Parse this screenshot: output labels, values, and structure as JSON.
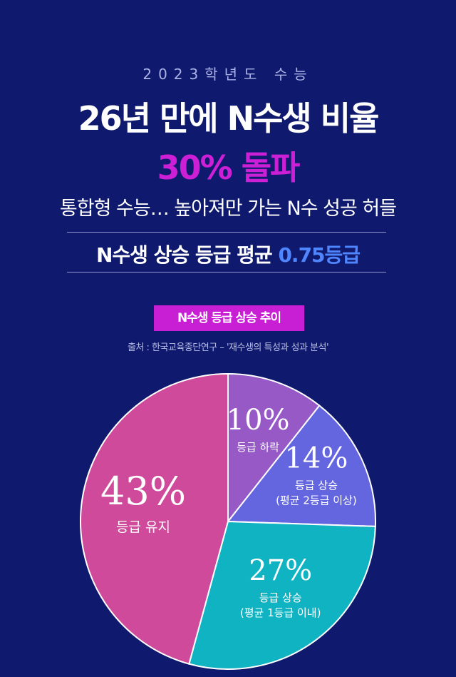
{
  "header": {
    "kicker": "2023학년도 수능",
    "title_line1": "26년 만에 N수생 비율",
    "title_line2": "30% 돌파",
    "subtitle": "통합형 수능… 높아져만 가는 N수 성공 허들",
    "stat_prefix": "N수생 상승 등급 평균 ",
    "stat_value": "0.75등급"
  },
  "chart_title": "N수생 등급 상승 추이",
  "source": "출처 : 한국교육종단연구 –  '재수생의 특성과 성과 분석'",
  "chart_data": {
    "type": "pie",
    "title": "N수생 등급 상승 추이",
    "slices": [
      {
        "label": "등급 하락",
        "sublabel": "",
        "value": 10,
        "display": "10%",
        "color": "#9759c5"
      },
      {
        "label": "등급 상승",
        "sublabel": "(평균 2등급 이상)",
        "value": 14,
        "display": "14%",
        "color": "#6466df"
      },
      {
        "label": "등급 상승",
        "sublabel": "(평균 1등급 이내)",
        "value": 27,
        "display": "27%",
        "color": "#0fb3c1"
      },
      {
        "label": "등급 유지",
        "sublabel": "",
        "value": 43,
        "display": "43%",
        "color": "#cf4a9b"
      }
    ]
  }
}
